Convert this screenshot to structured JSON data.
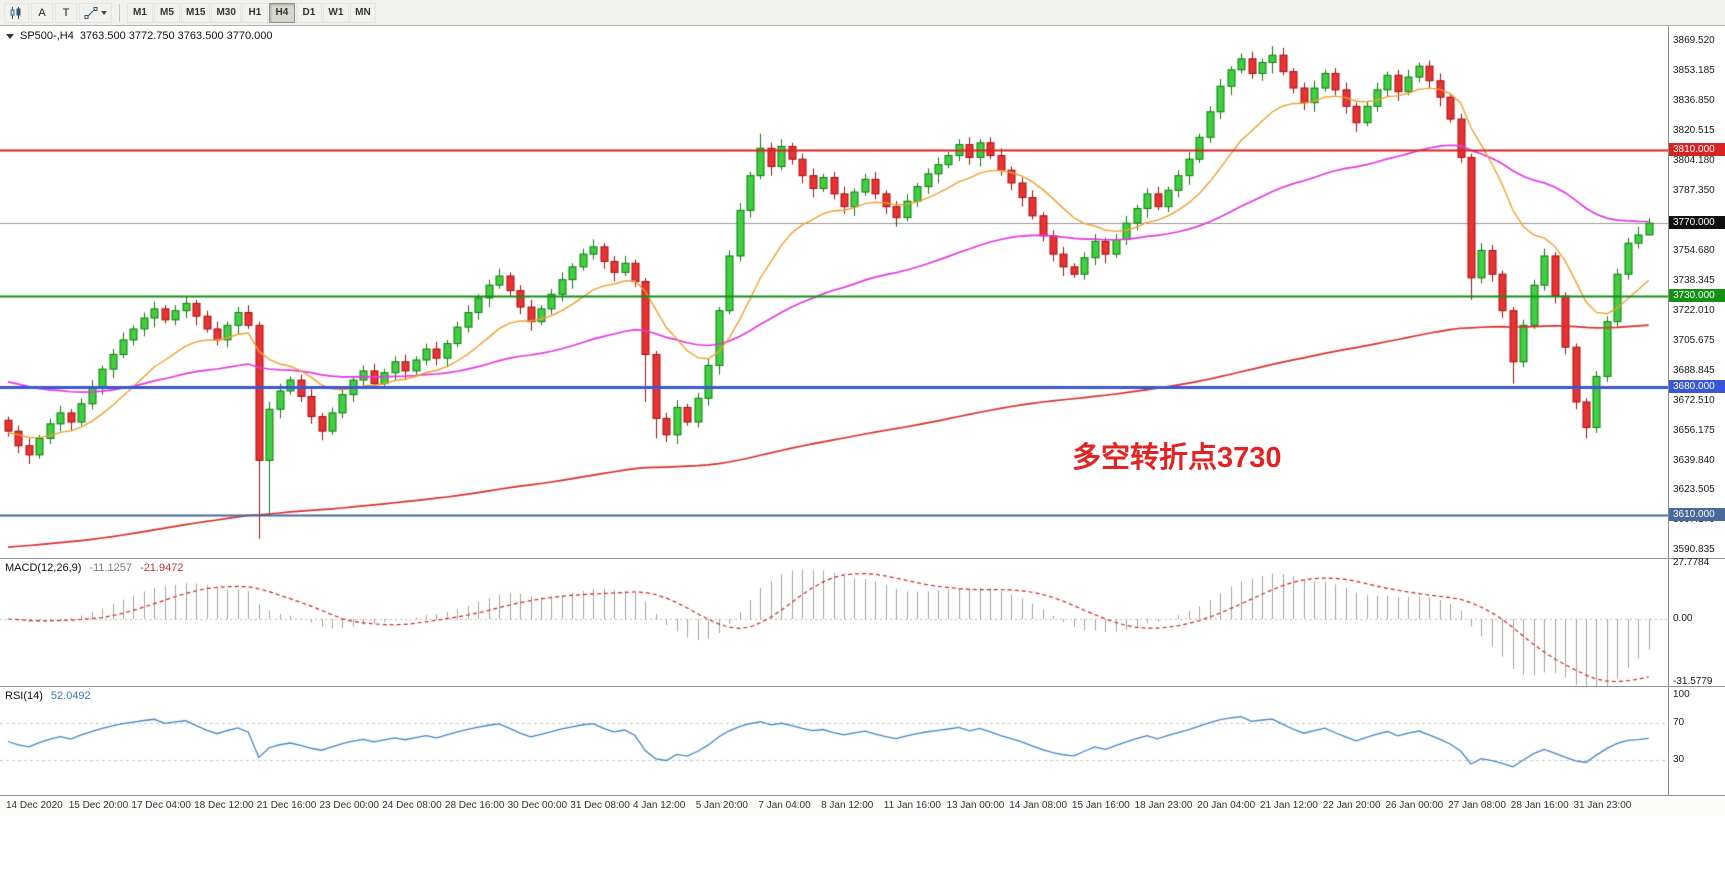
{
  "toolbar": {
    "tools": [
      {
        "label": "A"
      },
      {
        "label": "T"
      }
    ],
    "timeframes": [
      "M1",
      "M5",
      "M15",
      "M30",
      "H1",
      "H4",
      "D1",
      "W1",
      "MN"
    ],
    "active_timeframe": "H4"
  },
  "chart": {
    "symbol": "SP500-,H4",
    "ohlc": "3763.500 3772.750 3763.500 3770.000",
    "annotation": "多空转折点3730",
    "levels": [
      {
        "label": "3810.000",
        "price": 3810,
        "badge": "#d42424",
        "line": "#d42424",
        "width": 2,
        "z": "top"
      },
      {
        "label": "3770.000",
        "price": 3770,
        "badge": "#101010",
        "line": "#9a9a9a",
        "width": 1,
        "z": "under"
      },
      {
        "label": "3730.000",
        "price": 3730,
        "badge": "#149014",
        "line": "#149014",
        "width": 2,
        "z": "top"
      },
      {
        "label": "3680.000",
        "price": 3680,
        "badge": "#3a57d6",
        "line": "#3a57d6",
        "width": 3,
        "z": "top"
      },
      {
        "label": "3610.000",
        "price": 3610,
        "badge": "#47699c",
        "line": "#47699c",
        "width": 2,
        "z": "top"
      }
    ],
    "price_axis": [
      "3869.520",
      "3853.185",
      "3836.850",
      "3820.515",
      "3804.180",
      "3787.350",
      "3754.680",
      "3738.345",
      "3722.010",
      "3705.675",
      "3688.845",
      "3672.510",
      "3656.175",
      "3639.840",
      "3623.505",
      "3607.170",
      "3590.835"
    ],
    "time_axis": [
      "14 Dec 2020",
      "15 Dec 20:00",
      "17 Dec 04:00",
      "18 Dec 12:00",
      "21 Dec 16:00",
      "23 Dec 00:00",
      "24 Dec 08:00",
      "28 Dec 16:00",
      "30 Dec 00:00",
      "31 Dec 08:00",
      "4 Jan 12:00",
      "5 Jan 20:00",
      "7 Jan 04:00",
      "8 Jan 12:00",
      "11 Jan 16:00",
      "13 Jan 00:00",
      "14 Jan 08:00",
      "15 Jan 16:00",
      "18 Jan 23:00",
      "20 Jan 04:00",
      "21 Jan 12:00",
      "22 Jan 20:00",
      "26 Jan 00:00",
      "27 Jan 08:00",
      "28 Jan 16:00",
      "31 Jan 23:00"
    ]
  },
  "chart_data": {
    "type": "candlestick",
    "symbol": "SP500",
    "timeframe": "H4",
    "title": "SP500-,H4 3763.500 3772.750 3763.500 3770.000",
    "ylim": [
      3586.5,
      3878
    ],
    "x0": 8,
    "xstep": 10.45,
    "grid": false,
    "candles": [
      [
        3662,
        3664,
        3653,
        3656
      ],
      [
        3656,
        3659,
        3644,
        3648
      ],
      [
        3648,
        3652,
        3638,
        3643
      ],
      [
        3643,
        3654,
        3641,
        3652
      ],
      [
        3652,
        3663,
        3649,
        3660
      ],
      [
        3660,
        3670,
        3656,
        3666
      ],
      [
        3666,
        3668,
        3656,
        3661
      ],
      [
        3661,
        3674,
        3659,
        3671
      ],
      [
        3671,
        3684,
        3668,
        3680
      ],
      [
        3680,
        3692,
        3676,
        3690
      ],
      [
        3690,
        3701,
        3685,
        3698
      ],
      [
        3698,
        3710,
        3696,
        3706
      ],
      [
        3706,
        3714,
        3703,
        3712
      ],
      [
        3712,
        3721,
        3708,
        3718
      ],
      [
        3718,
        3727,
        3713,
        3723
      ],
      [
        3723,
        3725,
        3715,
        3717
      ],
      [
        3717,
        3725,
        3714,
        3722
      ],
      [
        3722,
        3730,
        3718,
        3726
      ],
      [
        3726,
        3728,
        3714,
        3719
      ],
      [
        3719,
        3722,
        3710,
        3712
      ],
      [
        3712,
        3716,
        3703,
        3706
      ],
      [
        3706,
        3716,
        3702,
        3714
      ],
      [
        3714,
        3724,
        3709,
        3721
      ],
      [
        3721,
        3725,
        3712,
        3714
      ],
      [
        3714,
        3716,
        3597,
        3640
      ],
      [
        3640,
        3672,
        3610,
        3668
      ],
      [
        3668,
        3682,
        3663,
        3678
      ],
      [
        3678,
        3686,
        3676,
        3684
      ],
      [
        3684,
        3687,
        3672,
        3675
      ],
      [
        3675,
        3679,
        3660,
        3664
      ],
      [
        3664,
        3666,
        3651,
        3656
      ],
      [
        3656,
        3669,
        3654,
        3666
      ],
      [
        3666,
        3680,
        3663,
        3676
      ],
      [
        3676,
        3686,
        3672,
        3684
      ],
      [
        3684,
        3692,
        3679,
        3689
      ],
      [
        3689,
        3693,
        3680,
        3682
      ],
      [
        3682,
        3690,
        3679,
        3688
      ],
      [
        3688,
        3697,
        3684,
        3694
      ],
      [
        3694,
        3698,
        3684,
        3689
      ],
      [
        3689,
        3697,
        3687,
        3695
      ],
      [
        3695,
        3704,
        3692,
        3701
      ],
      [
        3701,
        3705,
        3692,
        3696
      ],
      [
        3696,
        3706,
        3691,
        3704
      ],
      [
        3704,
        3716,
        3702,
        3713
      ],
      [
        3713,
        3725,
        3710,
        3721
      ],
      [
        3721,
        3731,
        3717,
        3729
      ],
      [
        3729,
        3739,
        3724,
        3736
      ],
      [
        3736,
        3745,
        3734,
        3741
      ],
      [
        3741,
        3743,
        3730,
        3733
      ],
      [
        3733,
        3736,
        3720,
        3724
      ],
      [
        3724,
        3728,
        3711,
        3716
      ],
      [
        3716,
        3725,
        3714,
        3723
      ],
      [
        3723,
        3734,
        3720,
        3731
      ],
      [
        3731,
        3743,
        3727,
        3739
      ],
      [
        3739,
        3748,
        3734,
        3746
      ],
      [
        3746,
        3756,
        3744,
        3753
      ],
      [
        3753,
        3761,
        3750,
        3757
      ],
      [
        3757,
        3759,
        3745,
        3749
      ],
      [
        3749,
        3752,
        3738,
        3743
      ],
      [
        3743,
        3752,
        3741,
        3748
      ],
      [
        3748,
        3750,
        3735,
        3738
      ],
      [
        3738,
        3740,
        3672,
        3698
      ],
      [
        3698,
        3700,
        3652,
        3663
      ],
      [
        3663,
        3666,
        3650,
        3654
      ],
      [
        3654,
        3673,
        3649,
        3669
      ],
      [
        3669,
        3671,
        3659,
        3661
      ],
      [
        3661,
        3677,
        3658,
        3674
      ],
      [
        3674,
        3696,
        3670,
        3692
      ],
      [
        3692,
        3724,
        3687,
        3722
      ],
      [
        3722,
        3755,
        3720,
        3752
      ],
      [
        3752,
        3781,
        3749,
        3777
      ],
      [
        3777,
        3798,
        3773,
        3796
      ],
      [
        3796,
        3819,
        3794,
        3811
      ],
      [
        3811,
        3814,
        3796,
        3801
      ],
      [
        3801,
        3816,
        3799,
        3812
      ],
      [
        3812,
        3814,
        3802,
        3805
      ],
      [
        3805,
        3808,
        3792,
        3796
      ],
      [
        3796,
        3800,
        3784,
        3789
      ],
      [
        3789,
        3797,
        3787,
        3795
      ],
      [
        3795,
        3798,
        3783,
        3786
      ],
      [
        3786,
        3790,
        3775,
        3779
      ],
      [
        3779,
        3789,
        3774,
        3787
      ],
      [
        3787,
        3797,
        3785,
        3794
      ],
      [
        3794,
        3798,
        3783,
        3786
      ],
      [
        3786,
        3788,
        3775,
        3779
      ],
      [
        3779,
        3782,
        3768,
        3773
      ],
      [
        3773,
        3786,
        3771,
        3782
      ],
      [
        3782,
        3792,
        3779,
        3790
      ],
      [
        3790,
        3800,
        3786,
        3797
      ],
      [
        3797,
        3806,
        3792,
        3802
      ],
      [
        3802,
        3809,
        3800,
        3807
      ],
      [
        3807,
        3816,
        3804,
        3813
      ],
      [
        3813,
        3817,
        3802,
        3806
      ],
      [
        3806,
        3816,
        3801,
        3814
      ],
      [
        3814,
        3817,
        3805,
        3807
      ],
      [
        3807,
        3811,
        3796,
        3799
      ],
      [
        3799,
        3801,
        3788,
        3792
      ],
      [
        3792,
        3795,
        3779,
        3784
      ],
      [
        3784,
        3788,
        3772,
        3774
      ],
      [
        3774,
        3776,
        3760,
        3763
      ],
      [
        3763,
        3766,
        3749,
        3753
      ],
      [
        3753,
        3757,
        3741,
        3746
      ],
      [
        3746,
        3748,
        3740,
        3742
      ],
      [
        3742,
        3754,
        3739,
        3751
      ],
      [
        3751,
        3764,
        3747,
        3760
      ],
      [
        3760,
        3762,
        3748,
        3753
      ],
      [
        3753,
        3764,
        3751,
        3761
      ],
      [
        3761,
        3774,
        3758,
        3770
      ],
      [
        3770,
        3780,
        3766,
        3778
      ],
      [
        3778,
        3789,
        3773,
        3786
      ],
      [
        3786,
        3790,
        3777,
        3779
      ],
      [
        3779,
        3790,
        3776,
        3788
      ],
      [
        3788,
        3799,
        3784,
        3796
      ],
      [
        3796,
        3809,
        3791,
        3805
      ],
      [
        3805,
        3819,
        3803,
        3817
      ],
      [
        3817,
        3834,
        3814,
        3831
      ],
      [
        3831,
        3849,
        3827,
        3845
      ],
      [
        3845,
        3856,
        3840,
        3854
      ],
      [
        3854,
        3863,
        3852,
        3860
      ],
      [
        3860,
        3864,
        3849,
        3852
      ],
      [
        3852,
        3860,
        3848,
        3858
      ],
      [
        3858,
        3867,
        3852,
        3862
      ],
      [
        3862,
        3866,
        3851,
        3853
      ],
      [
        3853,
        3855,
        3841,
        3844
      ],
      [
        3844,
        3847,
        3832,
        3836
      ],
      [
        3836,
        3848,
        3831,
        3844
      ],
      [
        3844,
        3854,
        3842,
        3852
      ],
      [
        3852,
        3855,
        3840,
        3843
      ],
      [
        3843,
        3847,
        3830,
        3834
      ],
      [
        3834,
        3836,
        3820,
        3825
      ],
      [
        3825,
        3837,
        3823,
        3834
      ],
      [
        3834,
        3847,
        3831,
        3843
      ],
      [
        3843,
        3853,
        3839,
        3851
      ],
      [
        3851,
        3854,
        3837,
        3842
      ],
      [
        3842,
        3854,
        3840,
        3850
      ],
      [
        3850,
        3858,
        3847,
        3856
      ],
      [
        3856,
        3859,
        3844,
        3848
      ],
      [
        3848,
        3852,
        3834,
        3839
      ],
      [
        3839,
        3841,
        3825,
        3827
      ],
      [
        3827,
        3830,
        3803,
        3806
      ],
      [
        3806,
        3808,
        3728,
        3740
      ],
      [
        3740,
        3759,
        3737,
        3755
      ],
      [
        3755,
        3758,
        3738,
        3742
      ],
      [
        3742,
        3744,
        3718,
        3722
      ],
      [
        3722,
        3724,
        3682,
        3694
      ],
      [
        3694,
        3717,
        3691,
        3714
      ],
      [
        3714,
        3739,
        3712,
        3736
      ],
      [
        3736,
        3756,
        3733,
        3752
      ],
      [
        3752,
        3754,
        3726,
        3730
      ],
      [
        3730,
        3732,
        3698,
        3702
      ],
      [
        3702,
        3704,
        3668,
        3672
      ],
      [
        3672,
        3674,
        3652,
        3658
      ],
      [
        3658,
        3689,
        3655,
        3686
      ],
      [
        3686,
        3719,
        3683,
        3716
      ],
      [
        3716,
        3745,
        3713,
        3742
      ],
      [
        3742,
        3762,
        3739,
        3759
      ],
      [
        3759,
        3768,
        3756,
        3763.5
      ],
      [
        3763.5,
        3772.75,
        3763.5,
        3770
      ]
    ],
    "overlays": [
      {
        "name": "ma-slow",
        "type": "ema",
        "period": 250,
        "seed": 3592,
        "color": "#d93030",
        "width": 1.7
      },
      {
        "name": "ma-mid",
        "type": "ema",
        "period": 55,
        "seed": 3684,
        "color": "#e23ae2",
        "width": 1.7
      },
      {
        "name": "ma-fast",
        "type": "ema",
        "period": 13,
        "seed": 3655,
        "color": "#f0a030",
        "width": 1.4
      }
    ],
    "indicators": {
      "macd": {
        "label": "MACD(12,26,9)",
        "value_main": "-11.1257",
        "value_signal": "-21.9472",
        "params": [
          12,
          26,
          9
        ],
        "axis_labels": [
          "27.7784",
          "0.00",
          "-31.5779"
        ],
        "ylim": [
          -34,
          30
        ],
        "hist_color": "#a4a4a4",
        "signal_color": "#d22626"
      },
      "rsi": {
        "label": "RSI(14)",
        "value": "52.0492",
        "period": 14,
        "axis_labels": [
          "100",
          "70",
          "30"
        ],
        "guide_levels": [
          70,
          30
        ],
        "ylim": [
          -8,
          108
        ],
        "color": "#4585c7"
      }
    }
  }
}
